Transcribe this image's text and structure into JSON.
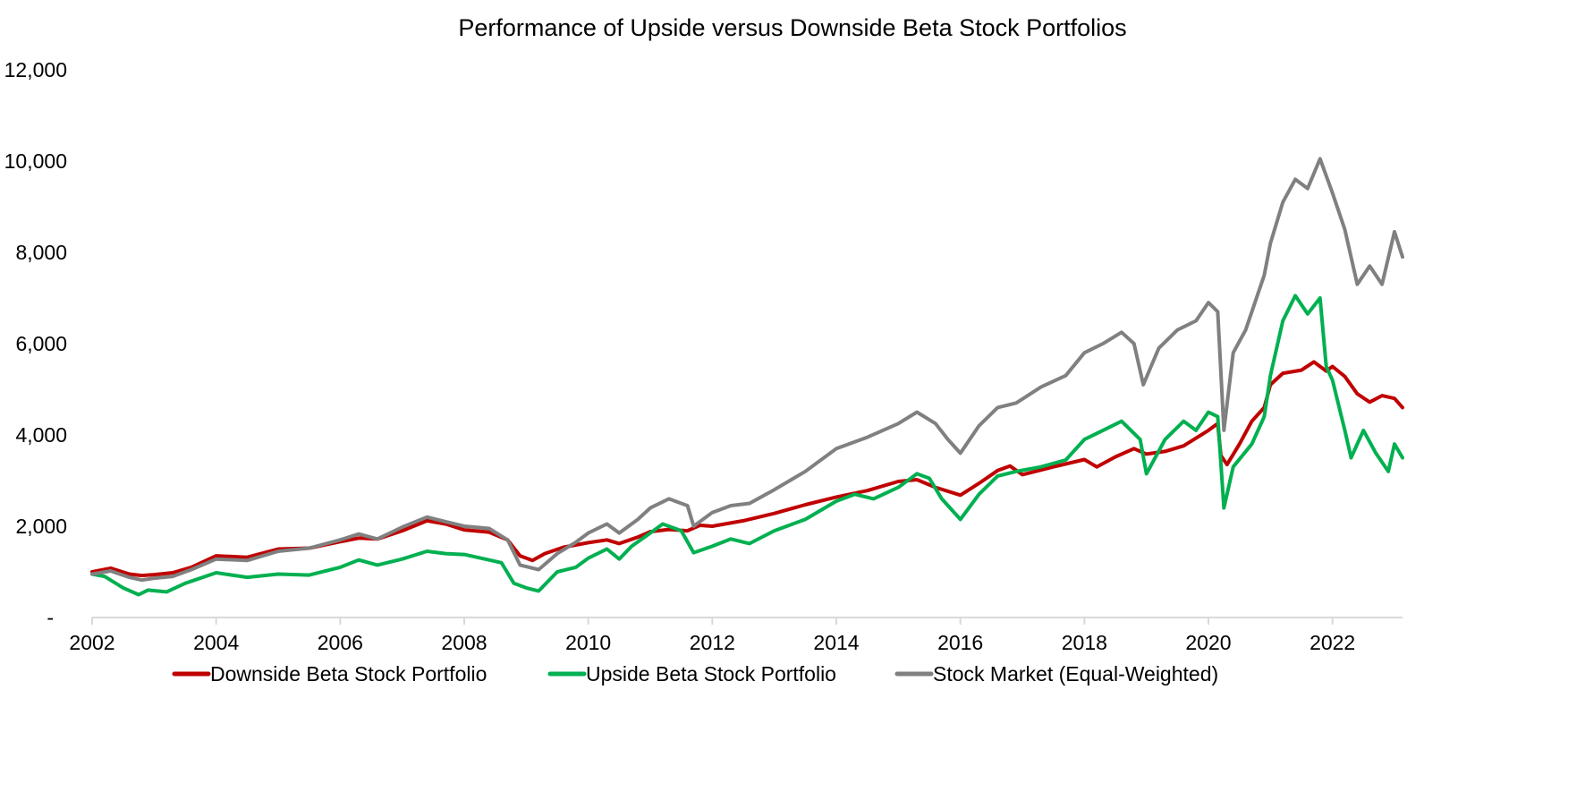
{
  "chart_data": {
    "type": "line",
    "title": "Performance of Upside versus Downside Beta Stock Portfolios",
    "xlabel": "",
    "ylabel": "",
    "xlim": [
      2002,
      2023.13
    ],
    "ylim": [
      0,
      12000
    ],
    "x_ticks": [
      "2002",
      "2004",
      "2006",
      "2008",
      "2010",
      "2012",
      "2014",
      "2016",
      "2018",
      "2020",
      "2022"
    ],
    "y_ticks": [
      "-",
      "2,000",
      "4,000",
      "6,000",
      "8,000",
      "10,000",
      "12,000"
    ],
    "grid": false,
    "legend_position": "bottom",
    "series": [
      {
        "name": "Downside Beta Stock Portfolio",
        "color": "#C00000",
        "points": [
          [
            2002.0,
            1000
          ],
          [
            2002.3,
            1080
          ],
          [
            2002.6,
            950
          ],
          [
            2002.8,
            920
          ],
          [
            2003.0,
            940
          ],
          [
            2003.3,
            980
          ],
          [
            2003.6,
            1100
          ],
          [
            2004.0,
            1350
          ],
          [
            2004.5,
            1320
          ],
          [
            2005.0,
            1500
          ],
          [
            2005.5,
            1520
          ],
          [
            2006.0,
            1660
          ],
          [
            2006.3,
            1740
          ],
          [
            2006.6,
            1720
          ],
          [
            2007.0,
            1900
          ],
          [
            2007.4,
            2120
          ],
          [
            2007.7,
            2050
          ],
          [
            2008.0,
            1920
          ],
          [
            2008.4,
            1870
          ],
          [
            2008.7,
            1700
          ],
          [
            2008.9,
            1350
          ],
          [
            2009.1,
            1250
          ],
          [
            2009.3,
            1400
          ],
          [
            2009.6,
            1540
          ],
          [
            2010.0,
            1640
          ],
          [
            2010.3,
            1700
          ],
          [
            2010.5,
            1620
          ],
          [
            2010.8,
            1760
          ],
          [
            2011.0,
            1880
          ],
          [
            2011.3,
            1930
          ],
          [
            2011.6,
            1900
          ],
          [
            2011.8,
            2020
          ],
          [
            2012.0,
            2000
          ],
          [
            2012.5,
            2120
          ],
          [
            2013.0,
            2280
          ],
          [
            2013.5,
            2470
          ],
          [
            2014.0,
            2640
          ],
          [
            2014.5,
            2780
          ],
          [
            2015.0,
            2980
          ],
          [
            2015.3,
            3020
          ],
          [
            2015.6,
            2850
          ],
          [
            2016.0,
            2680
          ],
          [
            2016.3,
            2940
          ],
          [
            2016.6,
            3220
          ],
          [
            2016.8,
            3320
          ],
          [
            2017.0,
            3130
          ],
          [
            2017.5,
            3300
          ],
          [
            2018.0,
            3460
          ],
          [
            2018.2,
            3300
          ],
          [
            2018.5,
            3520
          ],
          [
            2018.8,
            3700
          ],
          [
            2019.0,
            3580
          ],
          [
            2019.3,
            3640
          ],
          [
            2019.6,
            3760
          ],
          [
            2020.0,
            4100
          ],
          [
            2020.15,
            4250
          ],
          [
            2020.2,
            3550
          ],
          [
            2020.3,
            3350
          ],
          [
            2020.5,
            3800
          ],
          [
            2020.7,
            4300
          ],
          [
            2020.9,
            4600
          ],
          [
            2021.0,
            5100
          ],
          [
            2021.2,
            5350
          ],
          [
            2021.5,
            5420
          ],
          [
            2021.7,
            5600
          ],
          [
            2021.9,
            5400
          ],
          [
            2022.0,
            5500
          ],
          [
            2022.2,
            5280
          ],
          [
            2022.4,
            4900
          ],
          [
            2022.6,
            4720
          ],
          [
            2022.8,
            4860
          ],
          [
            2023.0,
            4800
          ],
          [
            2023.13,
            4600
          ]
        ]
      },
      {
        "name": "Upside Beta Stock Portfolio",
        "color": "#00B050",
        "points": [
          [
            2002.0,
            950
          ],
          [
            2002.2,
            900
          ],
          [
            2002.5,
            650
          ],
          [
            2002.75,
            500
          ],
          [
            2002.9,
            600
          ],
          [
            2003.2,
            560
          ],
          [
            2003.5,
            750
          ],
          [
            2004.0,
            980
          ],
          [
            2004.5,
            880
          ],
          [
            2005.0,
            950
          ],
          [
            2005.5,
            930
          ],
          [
            2006.0,
            1100
          ],
          [
            2006.3,
            1260
          ],
          [
            2006.6,
            1150
          ],
          [
            2007.0,
            1280
          ],
          [
            2007.4,
            1450
          ],
          [
            2007.7,
            1400
          ],
          [
            2008.0,
            1380
          ],
          [
            2008.4,
            1260
          ],
          [
            2008.6,
            1200
          ],
          [
            2008.8,
            750
          ],
          [
            2009.0,
            650
          ],
          [
            2009.2,
            580
          ],
          [
            2009.5,
            1000
          ],
          [
            2009.8,
            1100
          ],
          [
            2010.0,
            1300
          ],
          [
            2010.3,
            1500
          ],
          [
            2010.5,
            1280
          ],
          [
            2010.7,
            1560
          ],
          [
            2011.0,
            1850
          ],
          [
            2011.2,
            2050
          ],
          [
            2011.5,
            1900
          ],
          [
            2011.7,
            1420
          ],
          [
            2012.0,
            1560
          ],
          [
            2012.3,
            1720
          ],
          [
            2012.6,
            1620
          ],
          [
            2013.0,
            1900
          ],
          [
            2013.5,
            2150
          ],
          [
            2014.0,
            2550
          ],
          [
            2014.3,
            2700
          ],
          [
            2014.6,
            2600
          ],
          [
            2015.0,
            2850
          ],
          [
            2015.3,
            3150
          ],
          [
            2015.5,
            3050
          ],
          [
            2015.7,
            2600
          ],
          [
            2016.0,
            2150
          ],
          [
            2016.3,
            2700
          ],
          [
            2016.6,
            3100
          ],
          [
            2016.9,
            3200
          ],
          [
            2017.3,
            3300
          ],
          [
            2017.7,
            3450
          ],
          [
            2018.0,
            3900
          ],
          [
            2018.3,
            4100
          ],
          [
            2018.6,
            4300
          ],
          [
            2018.9,
            3900
          ],
          [
            2019.0,
            3150
          ],
          [
            2019.3,
            3900
          ],
          [
            2019.6,
            4300
          ],
          [
            2019.8,
            4100
          ],
          [
            2020.0,
            4500
          ],
          [
            2020.15,
            4400
          ],
          [
            2020.25,
            2400
          ],
          [
            2020.4,
            3300
          ],
          [
            2020.7,
            3800
          ],
          [
            2020.9,
            4400
          ],
          [
            2021.0,
            5300
          ],
          [
            2021.2,
            6500
          ],
          [
            2021.4,
            7050
          ],
          [
            2021.6,
            6650
          ],
          [
            2021.8,
            7000
          ],
          [
            2021.9,
            5500
          ],
          [
            2022.0,
            5200
          ],
          [
            2022.2,
            4100
          ],
          [
            2022.3,
            3500
          ],
          [
            2022.5,
            4100
          ],
          [
            2022.7,
            3600
          ],
          [
            2022.9,
            3200
          ],
          [
            2023.0,
            3800
          ],
          [
            2023.13,
            3500
          ]
        ]
      },
      {
        "name": "Stock Market (Equal-Weighted)",
        "color": "#808080",
        "points": [
          [
            2002.0,
            950
          ],
          [
            2002.3,
            1020
          ],
          [
            2002.6,
            880
          ],
          [
            2002.8,
            820
          ],
          [
            2003.0,
            860
          ],
          [
            2003.3,
            900
          ],
          [
            2003.6,
            1050
          ],
          [
            2004.0,
            1280
          ],
          [
            2004.5,
            1250
          ],
          [
            2005.0,
            1450
          ],
          [
            2005.5,
            1520
          ],
          [
            2006.0,
            1700
          ],
          [
            2006.3,
            1830
          ],
          [
            2006.6,
            1720
          ],
          [
            2007.0,
            1980
          ],
          [
            2007.4,
            2200
          ],
          [
            2007.7,
            2100
          ],
          [
            2008.0,
            2000
          ],
          [
            2008.4,
            1950
          ],
          [
            2008.7,
            1700
          ],
          [
            2008.9,
            1150
          ],
          [
            2009.2,
            1050
          ],
          [
            2009.5,
            1400
          ],
          [
            2009.8,
            1650
          ],
          [
            2010.0,
            1850
          ],
          [
            2010.3,
            2050
          ],
          [
            2010.5,
            1850
          ],
          [
            2010.8,
            2150
          ],
          [
            2011.0,
            2400
          ],
          [
            2011.3,
            2600
          ],
          [
            2011.6,
            2450
          ],
          [
            2011.7,
            2000
          ],
          [
            2012.0,
            2300
          ],
          [
            2012.3,
            2450
          ],
          [
            2012.6,
            2500
          ],
          [
            2013.0,
            2800
          ],
          [
            2013.5,
            3200
          ],
          [
            2014.0,
            3700
          ],
          [
            2014.5,
            3950
          ],
          [
            2015.0,
            4250
          ],
          [
            2015.3,
            4500
          ],
          [
            2015.6,
            4250
          ],
          [
            2015.8,
            3900
          ],
          [
            2016.0,
            3600
          ],
          [
            2016.3,
            4200
          ],
          [
            2016.6,
            4600
          ],
          [
            2016.9,
            4700
          ],
          [
            2017.3,
            5050
          ],
          [
            2017.7,
            5300
          ],
          [
            2018.0,
            5800
          ],
          [
            2018.3,
            6000
          ],
          [
            2018.6,
            6250
          ],
          [
            2018.8,
            6000
          ],
          [
            2018.95,
            5100
          ],
          [
            2019.2,
            5900
          ],
          [
            2019.5,
            6300
          ],
          [
            2019.8,
            6500
          ],
          [
            2020.0,
            6900
          ],
          [
            2020.15,
            6700
          ],
          [
            2020.25,
            4100
          ],
          [
            2020.4,
            5800
          ],
          [
            2020.6,
            6300
          ],
          [
            2020.9,
            7500
          ],
          [
            2021.0,
            8200
          ],
          [
            2021.2,
            9100
          ],
          [
            2021.4,
            9600
          ],
          [
            2021.6,
            9400
          ],
          [
            2021.8,
            10050
          ],
          [
            2022.0,
            9300
          ],
          [
            2022.2,
            8500
          ],
          [
            2022.4,
            7300
          ],
          [
            2022.6,
            7700
          ],
          [
            2022.8,
            7300
          ],
          [
            2023.0,
            8450
          ],
          [
            2023.13,
            7900
          ]
        ]
      }
    ]
  }
}
